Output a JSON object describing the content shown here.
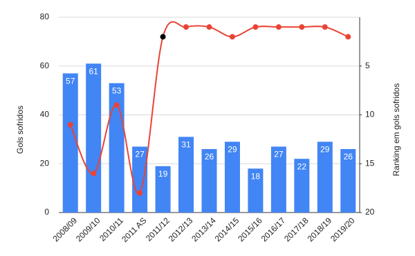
{
  "chart_data": {
    "type": "bar-line",
    "categories": [
      "2008/09",
      "2009/10",
      "2010/11",
      "2011 AS",
      "2011/12",
      "2012/13",
      "2013/14",
      "2014/15",
      "2015/16",
      "2016/17",
      "2017/18",
      "2018/19",
      "2019/20"
    ],
    "series": [
      {
        "name": "Gols sofridos",
        "type": "bar",
        "color": "#4285f4",
        "values": [
          57,
          61,
          53,
          27,
          19,
          31,
          26,
          29,
          18,
          27,
          22,
          29,
          26
        ]
      },
      {
        "name": "Ranking em gols sofridos",
        "type": "line",
        "axis": "y2",
        "color": "#ea4335",
        "marker_colors": [
          "#ea4335",
          "#ea4335",
          "#ea4335",
          "#ea4335",
          "#000000",
          "#ea4335",
          "#ea4335",
          "#ea4335",
          "#ea4335",
          "#ea4335",
          "#ea4335",
          "#ea4335",
          "#ea4335"
        ],
        "values": [
          11,
          16,
          9,
          18,
          2,
          1,
          1,
          2,
          1,
          1,
          1,
          1,
          2
        ]
      }
    ],
    "ylabel": "Gols sofridos",
    "y2label": "Ranking em gols sofridos",
    "ylim": [
      0,
      80
    ],
    "yticks": [
      0,
      20,
      40,
      60,
      80
    ],
    "y2lim": [
      20,
      0
    ],
    "y2ticks": [
      5,
      10,
      15,
      20
    ],
    "grid": true
  }
}
